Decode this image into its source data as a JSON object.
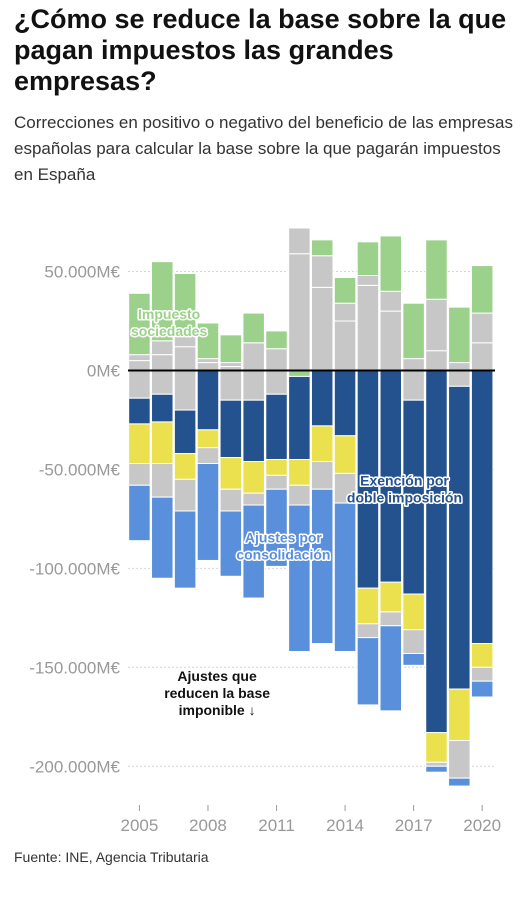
{
  "title": "¿Cómo se reduce la base sobre la que pagan impuestos las grandes empresas?",
  "subtitle": "Correcciones en positivo o negativo del beneficio de las empresas españolas para calcular la base sobre la que pagarán impuestos en España",
  "source": "Fuente: INE, Agencia Tributaria",
  "colors": {
    "impuesto_sociedades": "#9bd18a",
    "otros": "#c7c7c7",
    "doble_imposicion": "#24528f",
    "amarillo": "#ebe04d",
    "consolidacion": "#5a8fdc",
    "zero_line": "#000000",
    "grid": "#d6d6d6"
  },
  "chart_data": {
    "type": "bar",
    "stacked": true,
    "categories": [
      "2005",
      "2006",
      "2007",
      "2008",
      "2009",
      "2010",
      "2011",
      "2012",
      "2013",
      "2014",
      "2015",
      "2016",
      "2017",
      "2018",
      "2019",
      "2020"
    ],
    "x_tick_labels": [
      "2005",
      "2008",
      "2011",
      "2014",
      "2017",
      "2020"
    ],
    "y_ticks": [
      50000,
      0,
      -50000,
      -100000,
      -150000,
      -200000
    ],
    "y_tick_labels": [
      "50.000M€",
      "0M€",
      "-50.000M€",
      "-100.000M€",
      "-150.000M€",
      "-200.000M€"
    ],
    "ylim": [
      -212000,
      72000
    ],
    "positive": [
      [
        {
          "c": "otros",
          "v": 5000
        },
        {
          "c": "otros",
          "v": 3000
        },
        {
          "c": "impuesto_sociedades",
          "v": 31000
        }
      ],
      [
        {
          "c": "otros",
          "v": 8000
        },
        {
          "c": "otros",
          "v": 7000
        },
        {
          "c": "impuesto_sociedades",
          "v": 40000
        }
      ],
      [
        {
          "c": "otros",
          "v": 12000
        },
        {
          "c": "otros",
          "v": 8000
        },
        {
          "c": "impuesto_sociedades",
          "v": 29000
        }
      ],
      [
        {
          "c": "otros",
          "v": 4000
        },
        {
          "c": "otros",
          "v": 2000
        },
        {
          "c": "impuesto_sociedades",
          "v": 18000
        }
      ],
      [
        {
          "c": "otros",
          "v": 2000
        },
        {
          "c": "otros",
          "v": 2000
        },
        {
          "c": "impuesto_sociedades",
          "v": 14000
        }
      ],
      [
        {
          "c": "otros",
          "v": 14000
        },
        {
          "c": "impuesto_sociedades",
          "v": 15000
        }
      ],
      [
        {
          "c": "otros",
          "v": 11000
        },
        {
          "c": "impuesto_sociedades",
          "v": 9000
        }
      ],
      [
        {
          "c": "otros",
          "v": 59000
        },
        {
          "c": "otros",
          "v": 13000
        }
      ],
      [
        {
          "c": "otros",
          "v": 42000
        },
        {
          "c": "otros",
          "v": 16000
        },
        {
          "c": "impuesto_sociedades",
          "v": 8000
        }
      ],
      [
        {
          "c": "otros",
          "v": 25000
        },
        {
          "c": "otros",
          "v": 9000
        },
        {
          "c": "impuesto_sociedades",
          "v": 13000
        }
      ],
      [
        {
          "c": "otros",
          "v": 43000
        },
        {
          "c": "otros",
          "v": 5000
        },
        {
          "c": "impuesto_sociedades",
          "v": 17000
        }
      ],
      [
        {
          "c": "otros",
          "v": 30000
        },
        {
          "c": "otros",
          "v": 10000
        },
        {
          "c": "impuesto_sociedades",
          "v": 28000
        }
      ],
      [
        {
          "c": "otros",
          "v": 6000
        },
        {
          "c": "impuesto_sociedades",
          "v": 28000
        }
      ],
      [
        {
          "c": "otros",
          "v": 10000
        },
        {
          "c": "otros",
          "v": 26000
        },
        {
          "c": "impuesto_sociedades",
          "v": 30000
        }
      ],
      [
        {
          "c": "otros",
          "v": 4000
        },
        {
          "c": "impuesto_sociedades",
          "v": 28000
        }
      ],
      [
        {
          "c": "otros",
          "v": 14000
        },
        {
          "c": "otros",
          "v": 15000
        },
        {
          "c": "impuesto_sociedades",
          "v": 24000
        }
      ]
    ],
    "negative": [
      [
        {
          "c": "otros",
          "v": 14000
        },
        {
          "c": "doble_imposicion",
          "v": 13000
        },
        {
          "c": "amarillo",
          "v": 20000
        },
        {
          "c": "otros",
          "v": 11000
        },
        {
          "c": "consolidacion",
          "v": 28000
        }
      ],
      [
        {
          "c": "otros",
          "v": 12000
        },
        {
          "c": "doble_imposicion",
          "v": 14000
        },
        {
          "c": "amarillo",
          "v": 21000
        },
        {
          "c": "otros",
          "v": 17000
        },
        {
          "c": "consolidacion",
          "v": 41000
        }
      ],
      [
        {
          "c": "otros",
          "v": 20000
        },
        {
          "c": "doble_imposicion",
          "v": 22000
        },
        {
          "c": "amarillo",
          "v": 13000
        },
        {
          "c": "otros",
          "v": 16000
        },
        {
          "c": "consolidacion",
          "v": 39000
        }
      ],
      [
        {
          "c": "doble_imposicion",
          "v": 30000
        },
        {
          "c": "amarillo",
          "v": 9000
        },
        {
          "c": "otros",
          "v": 8000
        },
        {
          "c": "consolidacion",
          "v": 49000
        }
      ],
      [
        {
          "c": "otros",
          "v": 15000
        },
        {
          "c": "doble_imposicion",
          "v": 29000
        },
        {
          "c": "amarillo",
          "v": 16000
        },
        {
          "c": "otros",
          "v": 11000
        },
        {
          "c": "consolidacion",
          "v": 33000
        }
      ],
      [
        {
          "c": "otros",
          "v": 15000
        },
        {
          "c": "doble_imposicion",
          "v": 31000
        },
        {
          "c": "amarillo",
          "v": 16000
        },
        {
          "c": "otros",
          "v": 6000
        },
        {
          "c": "consolidacion",
          "v": 47000
        }
      ],
      [
        {
          "c": "otros",
          "v": 12000
        },
        {
          "c": "doble_imposicion",
          "v": 33000
        },
        {
          "c": "amarillo",
          "v": 8000
        },
        {
          "c": "otros",
          "v": 7000
        },
        {
          "c": "consolidacion",
          "v": 39000
        }
      ],
      [
        {
          "c": "impuesto_sociedades",
          "v": 3000
        },
        {
          "c": "doble_imposicion",
          "v": 42000
        },
        {
          "c": "amarillo",
          "v": 13000
        },
        {
          "c": "otros",
          "v": 10000
        },
        {
          "c": "consolidacion",
          "v": 74000
        }
      ],
      [
        {
          "c": "doble_imposicion",
          "v": 28000
        },
        {
          "c": "amarillo",
          "v": 18000
        },
        {
          "c": "otros",
          "v": 14000
        },
        {
          "c": "consolidacion",
          "v": 78000
        }
      ],
      [
        {
          "c": "doble_imposicion",
          "v": 33000
        },
        {
          "c": "amarillo",
          "v": 19000
        },
        {
          "c": "otros",
          "v": 15000
        },
        {
          "c": "consolidacion",
          "v": 75000
        }
      ],
      [
        {
          "c": "doble_imposicion",
          "v": 110000
        },
        {
          "c": "amarillo",
          "v": 18000
        },
        {
          "c": "otros",
          "v": 7000
        },
        {
          "c": "consolidacion",
          "v": 34000
        }
      ],
      [
        {
          "c": "doble_imposicion",
          "v": 107000
        },
        {
          "c": "amarillo",
          "v": 15000
        },
        {
          "c": "otros",
          "v": 7000
        },
        {
          "c": "consolidacion",
          "v": 43000
        }
      ],
      [
        {
          "c": "otros",
          "v": 15000
        },
        {
          "c": "doble_imposicion",
          "v": 98000
        },
        {
          "c": "amarillo",
          "v": 18000
        },
        {
          "c": "otros",
          "v": 12000
        },
        {
          "c": "consolidacion",
          "v": 6000
        }
      ],
      [
        {
          "c": "doble_imposicion",
          "v": 183000
        },
        {
          "c": "amarillo",
          "v": 15000
        },
        {
          "c": "otros",
          "v": 2000
        },
        {
          "c": "consolidacion",
          "v": 3000
        }
      ],
      [
        {
          "c": "otros",
          "v": 8000
        },
        {
          "c": "doble_imposicion",
          "v": 153000
        },
        {
          "c": "amarillo",
          "v": 26000
        },
        {
          "c": "otros",
          "v": 19000
        },
        {
          "c": "consolidacion",
          "v": 4000
        }
      ],
      [
        {
          "c": "doble_imposicion",
          "v": 138000
        },
        {
          "c": "amarillo",
          "v": 12000
        },
        {
          "c": "otros",
          "v": 7000
        },
        {
          "c": "consolidacion",
          "v": 8000
        }
      ]
    ],
    "annotations": [
      {
        "lines": [
          "Impuesto",
          "sociedades"
        ],
        "color": "#9bd18a",
        "cat": 1.3,
        "y": 26000
      },
      {
        "lines": [
          "Ajustes por",
          "consolidación"
        ],
        "color": "#5a8fdc",
        "cat": 6.3,
        "y": -87000
      },
      {
        "lines": [
          "Exención por",
          "doble imposición"
        ],
        "color": "#24528f",
        "cat": 11.6,
        "y": -58000
      },
      {
        "lines": [
          "Ajustes que",
          "reducen la base",
          "imponible ↓"
        ],
        "color": "#111111",
        "cat": 3.4,
        "y": -157000
      }
    ]
  }
}
